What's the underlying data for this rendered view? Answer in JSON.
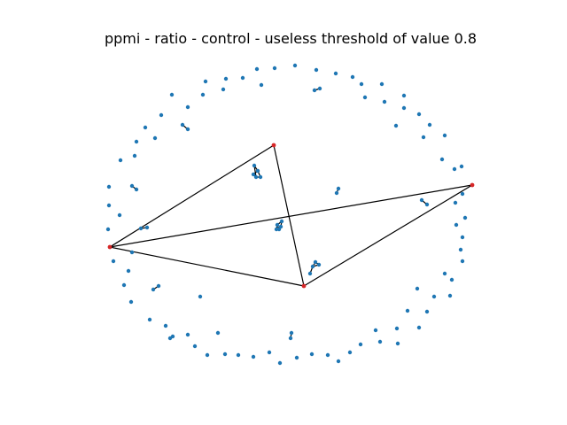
{
  "title": "ppmi - ratio - control - useless threshold of value 0.8",
  "colors": {
    "node": "#1f77b4",
    "highlight_node": "#d62728",
    "edge": "#000000",
    "background": "#ffffff"
  },
  "graph": {
    "highlighted_nodes": [
      "A",
      "B",
      "C",
      "D"
    ],
    "edges": [
      [
        "A",
        "B"
      ],
      [
        "A",
        "C"
      ],
      [
        "B",
        "C"
      ],
      [
        "B",
        "D"
      ],
      [
        "C",
        "D"
      ]
    ],
    "small_clusters": 9,
    "isolated_nodes": 101
  }
}
